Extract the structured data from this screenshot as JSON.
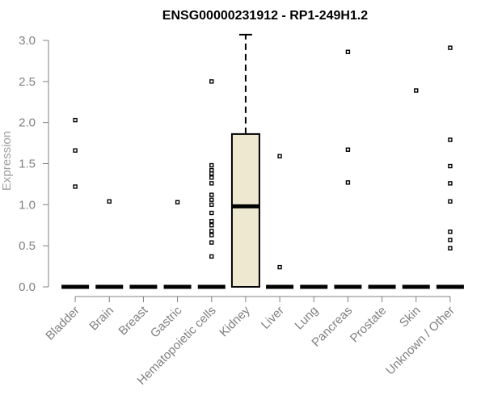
{
  "chart_data": {
    "type": "boxplot",
    "title": "ENSG00000231912 - RP1-249H1.2",
    "xlabel": "",
    "ylabel": "Expression",
    "ylim": [
      0,
      3.0
    ],
    "yticks": [
      "0.0",
      "0.5",
      "1.0",
      "1.5",
      "2.0",
      "2.5",
      "3.0"
    ],
    "grid": false,
    "categories": [
      "Bladder",
      "Brain",
      "Breast",
      "Gastric",
      "Hematopoietic cells",
      "Kidney",
      "Liver",
      "Lung",
      "Pancreas",
      "Prostate",
      "Skin",
      "Unknown / Other"
    ],
    "boxes": [
      {
        "category": "Bladder",
        "min": 0,
        "q1": 0,
        "median": 0,
        "q3": 0,
        "max": 0,
        "outliers": [
          1.22,
          1.66,
          2.03
        ]
      },
      {
        "category": "Brain",
        "min": 0,
        "q1": 0,
        "median": 0,
        "q3": 0,
        "max": 0,
        "outliers": [
          1.04
        ]
      },
      {
        "category": "Breast",
        "min": 0,
        "q1": 0,
        "median": 0,
        "q3": 0,
        "max": 0,
        "outliers": []
      },
      {
        "category": "Gastric",
        "min": 0,
        "q1": 0,
        "median": 0,
        "q3": 0,
        "max": 0,
        "outliers": [
          1.03
        ]
      },
      {
        "category": "Hematopoietic cells",
        "min": 0,
        "q1": 0,
        "median": 0,
        "q3": 0,
        "max": 0,
        "outliers": [
          0.37,
          0.54,
          0.63,
          0.68,
          0.75,
          0.8,
          0.9,
          1.0,
          1.06,
          1.12,
          1.26,
          1.33,
          1.38,
          1.42,
          1.48,
          2.5
        ]
      },
      {
        "category": "Kidney",
        "min": 0,
        "q1": 0,
        "median": 0.98,
        "q3": 1.86,
        "max": 3.07,
        "outliers": []
      },
      {
        "category": "Liver",
        "min": 0,
        "q1": 0,
        "median": 0,
        "q3": 0,
        "max": 0,
        "outliers": [
          0.24,
          1.59
        ]
      },
      {
        "category": "Lung",
        "min": 0,
        "q1": 0,
        "median": 0,
        "q3": 0,
        "max": 0,
        "outliers": []
      },
      {
        "category": "Pancreas",
        "min": 0,
        "q1": 0,
        "median": 0,
        "q3": 0,
        "max": 0,
        "outliers": [
          1.27,
          1.67,
          2.86
        ]
      },
      {
        "category": "Prostate",
        "min": 0,
        "q1": 0,
        "median": 0,
        "q3": 0,
        "max": 0,
        "outliers": []
      },
      {
        "category": "Skin",
        "min": 0,
        "q1": 0,
        "median": 0,
        "q3": 0,
        "max": 0,
        "outliers": [
          2.39
        ]
      },
      {
        "category": "Unknown / Other",
        "min": 0,
        "q1": 0,
        "median": 0,
        "q3": 0,
        "max": 0,
        "outliers": [
          0.47,
          0.57,
          0.67,
          1.04,
          1.26,
          1.47,
          1.79,
          2.91
        ]
      }
    ],
    "colors": {
      "box_fill": "#efe8d0",
      "box_stroke": "#000000",
      "axis": "#808080",
      "outlier": "#000000"
    }
  }
}
